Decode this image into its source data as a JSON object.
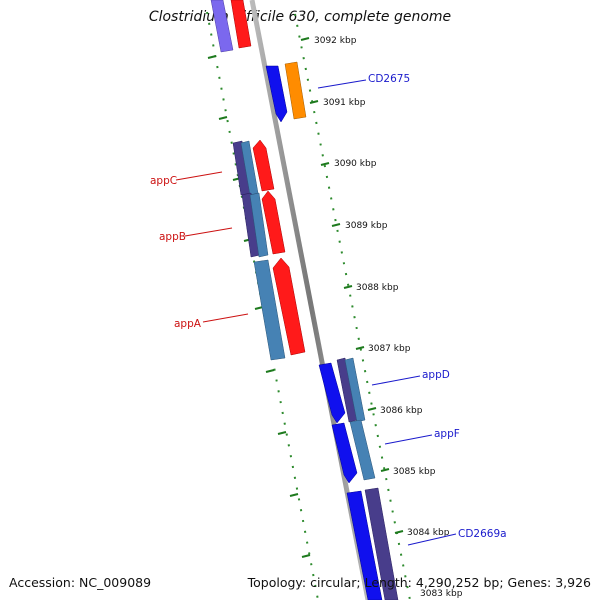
{
  "title": "Clostridium difficile 630, complete genome",
  "footer": {
    "accession": "Accession: NC_009089",
    "summary": "Topology: circular; Length: 4,290,252 bp; Genes: 3,926"
  },
  "ticks": [
    "3092 kbp",
    "3091 kbp",
    "3090 kbp",
    "3089 kbp",
    "3088 kbp",
    "3087 kbp",
    "3086 kbp",
    "3085 kbp",
    "3084 kbp",
    "3083 kbp"
  ],
  "gene_labels": [
    {
      "id": "CD2675",
      "label": "CD2675",
      "color": "#1a1acc"
    },
    {
      "id": "appC",
      "label": "appC",
      "color": "#cc1111"
    },
    {
      "id": "appB",
      "label": "appB",
      "color": "#cc1111"
    },
    {
      "id": "appA",
      "label": "appA",
      "color": "#cc1111"
    },
    {
      "id": "appD",
      "label": "appD",
      "color": "#1a1acc"
    },
    {
      "id": "appF",
      "label": "appF",
      "color": "#1a1acc"
    },
    {
      "id": "CD2669a",
      "label": "CD2669a",
      "color": "#1a1acc"
    }
  ],
  "colors": {
    "backbone": "#888888",
    "tick_marks": "#2e8b2e",
    "forward_cds": "#ff1a1a",
    "reverse_cds": "#1010ee",
    "orange_cds": "#ff8c00",
    "steel_blue": "#4682b4",
    "dark_slate": "#483d8b"
  }
}
